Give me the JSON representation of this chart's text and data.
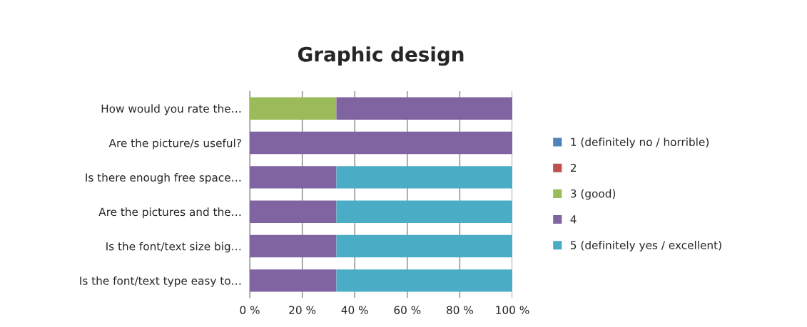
{
  "chart_data": {
    "type": "bar",
    "title": "Graphic design",
    "orientation": "horizontal",
    "stacked": true,
    "categories": [
      "How would you rate the…",
      "Are the picture/s useful?",
      "Is there enough free space…",
      "Are the pictures and the…",
      "Is the font/text size big…",
      "Is the font/text type easy to…"
    ],
    "series": [
      {
        "name": "1 (definitely no / horrible)",
        "color": "#4f81bd",
        "values": [
          0,
          0,
          0,
          0,
          0,
          0
        ]
      },
      {
        "name": "2",
        "color": "#c0504d",
        "values": [
          0,
          0,
          0,
          0,
          0,
          0
        ]
      },
      {
        "name": "3 (good)",
        "color": "#9bbb59",
        "values": [
          33,
          0,
          0,
          0,
          0,
          0
        ]
      },
      {
        "name": "4",
        "color": "#8064a2",
        "values": [
          67,
          100,
          33,
          33,
          33,
          33
        ]
      },
      {
        "name": "5 (definitely yes / excellent)",
        "color": "#4bacc6",
        "values": [
          0,
          0,
          67,
          67,
          67,
          67
        ]
      }
    ],
    "xlim": [
      0,
      100
    ],
    "xticks": [
      {
        "value": 0,
        "label": "0 %"
      },
      {
        "value": 20,
        "label": "20 %"
      },
      {
        "value": 40,
        "label": "40 %"
      },
      {
        "value": 60,
        "label": "60 %"
      },
      {
        "value": 80,
        "label": "80 %"
      },
      {
        "value": 100,
        "label": "100 %"
      }
    ],
    "grid": "x",
    "legend": "right"
  }
}
